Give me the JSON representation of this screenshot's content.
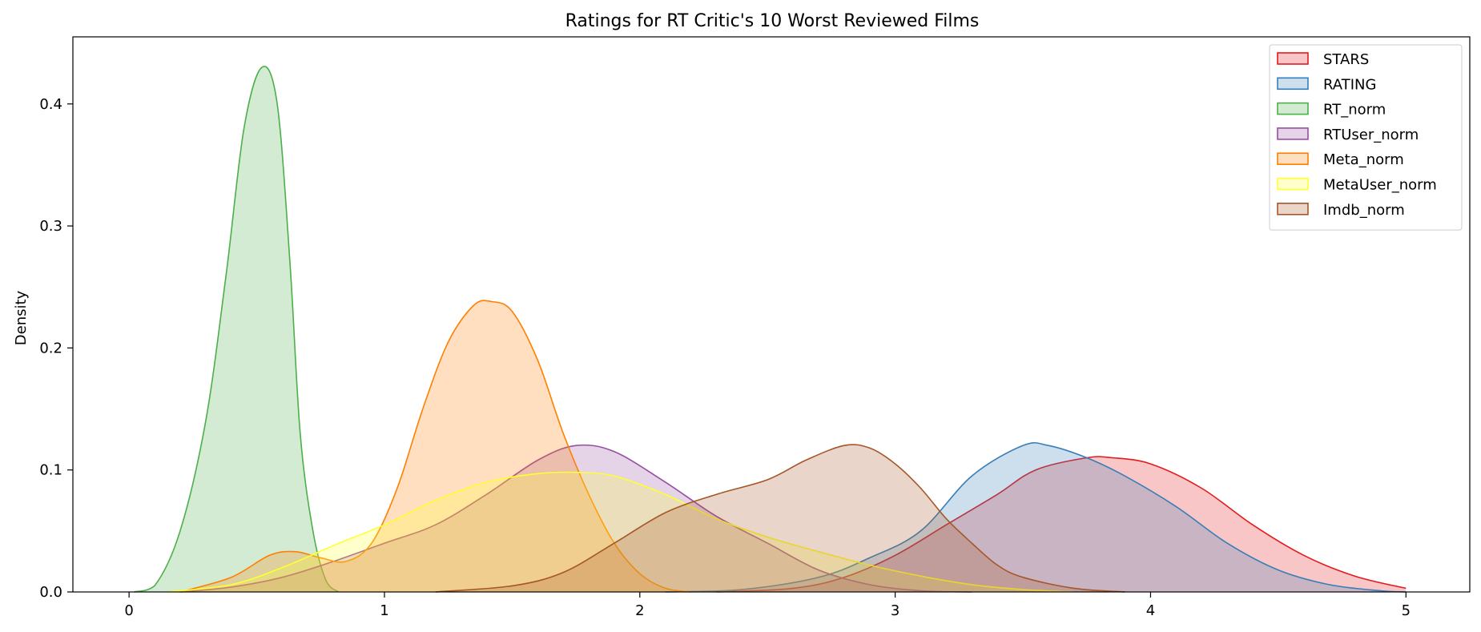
{
  "chart_data": {
    "type": "area",
    "title": "Ratings for RT Critic's 10 Worst Reviewed Films",
    "xlabel": "",
    "ylabel": "Density",
    "xlim": [
      -0.22,
      5.25
    ],
    "ylim": [
      0,
      0.455
    ],
    "xticks": [
      0,
      1,
      2,
      3,
      4,
      5
    ],
    "xtick_labels": [
      "0",
      "1",
      "2",
      "3",
      "4",
      "5"
    ],
    "yticks": [
      0.0,
      0.1,
      0.2,
      0.3,
      0.4
    ],
    "ytick_labels": [
      "0.0",
      "0.1",
      "0.2",
      "0.3",
      "0.4"
    ],
    "grid": false,
    "legend_position": "top-right",
    "series": [
      {
        "name": "STARS",
        "color": "#e41a1c",
        "points": [
          [
            2.3,
            0
          ],
          [
            2.6,
            0.003
          ],
          [
            2.8,
            0.012
          ],
          [
            3.0,
            0.03
          ],
          [
            3.2,
            0.055
          ],
          [
            3.4,
            0.08
          ],
          [
            3.55,
            0.1
          ],
          [
            3.75,
            0.11
          ],
          [
            3.85,
            0.11
          ],
          [
            4.0,
            0.105
          ],
          [
            4.2,
            0.085
          ],
          [
            4.4,
            0.055
          ],
          [
            4.6,
            0.03
          ],
          [
            4.8,
            0.013
          ],
          [
            5.0,
            0.003
          ]
        ]
      },
      {
        "name": "RATING",
        "color": "#377eb8",
        "points": [
          [
            2.1,
            0
          ],
          [
            2.4,
            0.002
          ],
          [
            2.7,
            0.012
          ],
          [
            2.9,
            0.028
          ],
          [
            3.1,
            0.05
          ],
          [
            3.3,
            0.095
          ],
          [
            3.5,
            0.12
          ],
          [
            3.6,
            0.12
          ],
          [
            3.75,
            0.11
          ],
          [
            3.9,
            0.095
          ],
          [
            4.1,
            0.07
          ],
          [
            4.3,
            0.04
          ],
          [
            4.5,
            0.018
          ],
          [
            4.7,
            0.006
          ],
          [
            4.9,
            0.001
          ],
          [
            5.0,
            0
          ]
        ]
      },
      {
        "name": "RT_norm",
        "color": "#4daf4a",
        "points": [
          [
            0.02,
            0
          ],
          [
            0.1,
            0.005
          ],
          [
            0.2,
            0.05
          ],
          [
            0.3,
            0.14
          ],
          [
            0.38,
            0.26
          ],
          [
            0.45,
            0.38
          ],
          [
            0.52,
            0.43
          ],
          [
            0.58,
            0.4
          ],
          [
            0.63,
            0.27
          ],
          [
            0.67,
            0.13
          ],
          [
            0.72,
            0.05
          ],
          [
            0.77,
            0.01
          ],
          [
            0.82,
            0
          ]
        ]
      },
      {
        "name": "RTUser_norm",
        "color": "#984ea3",
        "points": [
          [
            0.2,
            0
          ],
          [
            0.4,
            0.004
          ],
          [
            0.6,
            0.012
          ],
          [
            0.8,
            0.025
          ],
          [
            1.0,
            0.04
          ],
          [
            1.2,
            0.055
          ],
          [
            1.4,
            0.08
          ],
          [
            1.6,
            0.108
          ],
          [
            1.75,
            0.12
          ],
          [
            1.9,
            0.115
          ],
          [
            2.1,
            0.09
          ],
          [
            2.3,
            0.062
          ],
          [
            2.5,
            0.04
          ],
          [
            2.7,
            0.018
          ],
          [
            2.9,
            0.006
          ],
          [
            3.1,
            0.001
          ],
          [
            3.3,
            0
          ]
        ]
      },
      {
        "name": "Meta_norm",
        "color": "#ff7f00",
        "points": [
          [
            0.2,
            0
          ],
          [
            0.4,
            0.012
          ],
          [
            0.55,
            0.03
          ],
          [
            0.65,
            0.033
          ],
          [
            0.75,
            0.028
          ],
          [
            0.85,
            0.025
          ],
          [
            0.95,
            0.04
          ],
          [
            1.05,
            0.085
          ],
          [
            1.15,
            0.15
          ],
          [
            1.25,
            0.205
          ],
          [
            1.35,
            0.235
          ],
          [
            1.42,
            0.238
          ],
          [
            1.5,
            0.23
          ],
          [
            1.6,
            0.19
          ],
          [
            1.7,
            0.13
          ],
          [
            1.8,
            0.08
          ],
          [
            1.9,
            0.04
          ],
          [
            2.0,
            0.015
          ],
          [
            2.1,
            0.003
          ],
          [
            2.2,
            0
          ]
        ]
      },
      {
        "name": "MetaUser_norm",
        "color": "#ffff33",
        "points": [
          [
            0.15,
            0
          ],
          [
            0.4,
            0.006
          ],
          [
            0.6,
            0.02
          ],
          [
            0.8,
            0.038
          ],
          [
            1.0,
            0.055
          ],
          [
            1.2,
            0.075
          ],
          [
            1.4,
            0.09
          ],
          [
            1.6,
            0.097
          ],
          [
            1.75,
            0.098
          ],
          [
            1.9,
            0.095
          ],
          [
            2.1,
            0.08
          ],
          [
            2.3,
            0.06
          ],
          [
            2.5,
            0.045
          ],
          [
            2.7,
            0.033
          ],
          [
            2.9,
            0.022
          ],
          [
            3.1,
            0.013
          ],
          [
            3.3,
            0.006
          ],
          [
            3.5,
            0.002
          ],
          [
            3.7,
            0
          ]
        ]
      },
      {
        "name": "Imdb_norm",
        "color": "#a65628",
        "points": [
          [
            1.2,
            0
          ],
          [
            1.5,
            0.005
          ],
          [
            1.7,
            0.016
          ],
          [
            1.9,
            0.04
          ],
          [
            2.1,
            0.065
          ],
          [
            2.3,
            0.08
          ],
          [
            2.5,
            0.092
          ],
          [
            2.65,
            0.108
          ],
          [
            2.8,
            0.12
          ],
          [
            2.9,
            0.118
          ],
          [
            3.0,
            0.105
          ],
          [
            3.1,
            0.085
          ],
          [
            3.2,
            0.06
          ],
          [
            3.3,
            0.04
          ],
          [
            3.4,
            0.022
          ],
          [
            3.5,
            0.012
          ],
          [
            3.7,
            0.003
          ],
          [
            3.9,
            0
          ]
        ]
      }
    ]
  }
}
